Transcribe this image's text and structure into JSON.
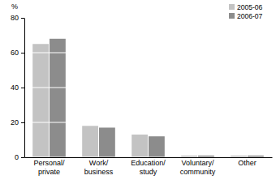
{
  "chart_data": {
    "type": "bar",
    "y_label": "%",
    "categories": [
      "Personal/private",
      "Work/business",
      "Education/study",
      "Voluntary/community",
      "Other"
    ],
    "series": [
      {
        "name": "2005-06",
        "color": "#c3c3c3",
        "values": [
          65,
          18,
          13,
          1,
          1
        ]
      },
      {
        "name": "2006-07",
        "color": "#8c8c8c",
        "values": [
          68,
          17,
          12,
          1,
          1
        ]
      }
    ],
    "ylim": [
      0,
      80
    ],
    "yticks": [
      0,
      20,
      40,
      60,
      80
    ],
    "grid": true,
    "legend": "top-right"
  }
}
